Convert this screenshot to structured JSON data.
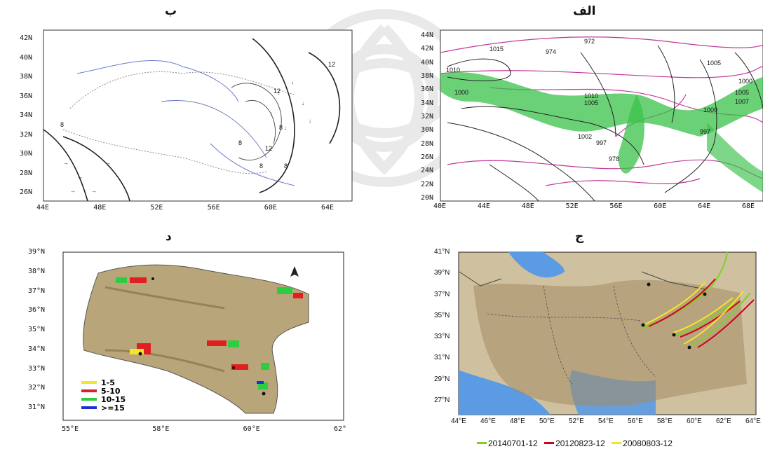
{
  "panels": {
    "top_right": {
      "title": "الف",
      "y_ticks": [
        "44N",
        "42N",
        "40N",
        "38N",
        "36N",
        "34N",
        "32N",
        "30N",
        "28N",
        "26N",
        "24N",
        "22N",
        "20N"
      ],
      "x_ticks": [
        "40E",
        "44E",
        "48E",
        "52E",
        "56E",
        "60E",
        "64E",
        "68E"
      ],
      "contour_labels": [
        "1015",
        "1010",
        "1000",
        "1010",
        "1005",
        "972",
        "974",
        "1005",
        "1000",
        "1005",
        "1007",
        "1000",
        "997",
        "1002",
        "997",
        "978"
      ]
    },
    "top_left": {
      "title": "ب",
      "y_ticks": [
        "42N",
        "40N",
        "38N",
        "36N",
        "34N",
        "32N",
        "30N",
        "28N",
        "26N"
      ],
      "x_ticks": [
        "44E",
        "48E",
        "52E",
        "56E",
        "60E",
        "64E"
      ],
      "contour_labels": [
        "12",
        "12",
        "8",
        "8",
        "12",
        "8",
        "8",
        "8"
      ]
    },
    "bottom_right": {
      "title": "ج",
      "y_ticks": [
        "41°N",
        "39°N",
        "37°N",
        "35°N",
        "33°N",
        "31°N",
        "29°N",
        "27°N"
      ],
      "x_ticks": [
        "44°E",
        "46°E",
        "48°E",
        "50°E",
        "52°E",
        "54°E",
        "56°E",
        "58°E",
        "60°E",
        "62°E",
        "64°E"
      ],
      "legend": [
        {
          "label": "20140701-12",
          "color": "#7ed321"
        },
        {
          "label": "20120823-12",
          "color": "#d0021b"
        },
        {
          "label": "20080803-12",
          "color": "#f5e52a"
        }
      ]
    },
    "bottom_left": {
      "title": "د",
      "y_ticks": [
        "39°N",
        "38°N",
        "37°N",
        "36°N",
        "35°N",
        "34°N",
        "33°N",
        "32°N",
        "31°N"
      ],
      "x_ticks": [
        "55°E",
        "58°E",
        "60°E",
        "62°"
      ],
      "legend": [
        {
          "label": "1-5",
          "color": "#f5e52a"
        },
        {
          "label": "5-10",
          "color": "#e02020"
        },
        {
          "label": "10-15",
          "color": "#2ecc40"
        },
        {
          "label": ">=15",
          "color": "#1f2fd6"
        }
      ]
    }
  },
  "colors": {
    "green_band": "#39c24a",
    "magenta_contour": "#c0399b",
    "terrain": "#b9a57a",
    "water": "#5b9be3"
  }
}
